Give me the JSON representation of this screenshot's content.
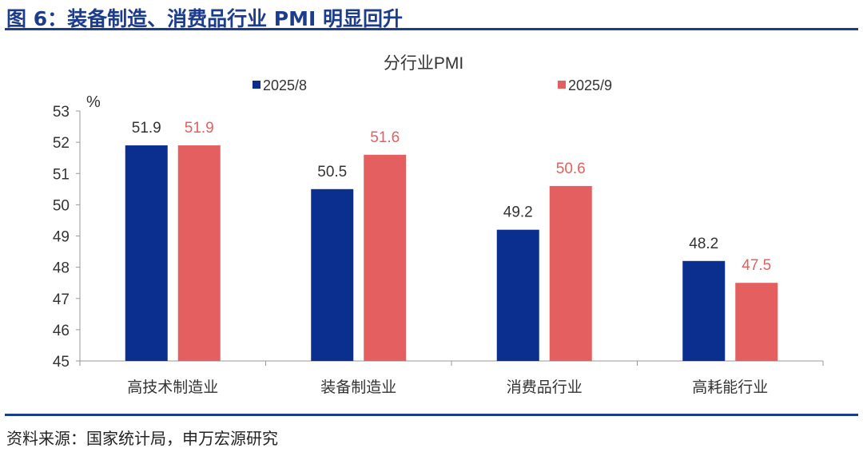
{
  "header": {
    "title": "图 6：装备制造、消费品行业 PMI 明显回升"
  },
  "footer": {
    "source": "资料来源：国家统计局，申万宏源研究"
  },
  "chart_data": {
    "type": "bar",
    "title": "分行业PMI",
    "ylabel": "%",
    "ylim": [
      45,
      53
    ],
    "yticks": [
      45,
      46,
      47,
      48,
      49,
      50,
      51,
      52,
      53
    ],
    "categories": [
      "高技术制造业",
      "装备制造业",
      "消费品行业",
      "高耗能行业"
    ],
    "series": [
      {
        "name": "2025/8",
        "values": [
          51.9,
          50.5,
          49.2,
          48.2
        ],
        "color": "#0a2f8f"
      },
      {
        "name": "2025/9",
        "values": [
          51.9,
          51.6,
          50.6,
          47.5
        ],
        "color": "#e45f5f"
      }
    ],
    "legend": "top",
    "grid": false
  }
}
